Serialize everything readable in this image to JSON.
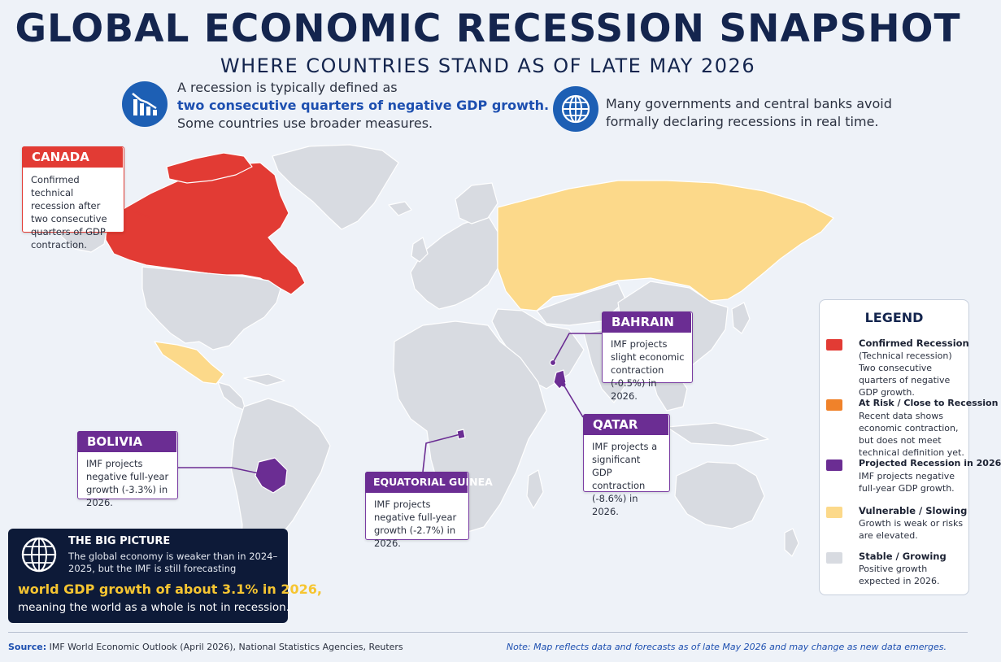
{
  "header": {
    "title": "GLOBAL ECONOMIC RECESSION SNAPSHOT",
    "subtitle": "WHERE COUNTRIES STAND AS OF LATE MAY 2026"
  },
  "info_left": {
    "icon": "declining-chart-icon",
    "line1": "A recession is typically defined as",
    "line2": "two consecutive quarters of negative GDP growth.",
    "line3": "Some countries use broader measures."
  },
  "info_right": {
    "icon": "globe-icon",
    "line1": "Many governments and central banks avoid",
    "line2": "formally declaring recessions in real time."
  },
  "colors": {
    "confirmed": "#e23b34",
    "at_risk": "#f0822a",
    "projected": "#6b2d93",
    "vulnerable": "#fcd98a",
    "stable": "#d8dbe1",
    "ocean": "#eef2f8"
  },
  "countries": [
    {
      "name": "CANADA",
      "status": "confirmed",
      "note": "Confirmed technical recession after two consecutive quarters of GDP contraction."
    },
    {
      "name": "BOLIVIA",
      "status": "projected",
      "note": "IMF projects negative full-year growth (-3.3%) in 2026."
    },
    {
      "name": "EQUATORIAL GUINEA",
      "status": "projected",
      "note": "IMF projects negative full-year growth (-2.7%) in 2026."
    },
    {
      "name": "BAHRAIN",
      "status": "projected",
      "note": "IMF projects slight economic contraction (-0.5%) in 2026."
    },
    {
      "name": "QATAR",
      "status": "projected",
      "note": "IMF projects a significant GDP contraction (-8.6%) in 2026."
    }
  ],
  "legend": {
    "title": "LEGEND",
    "items": [
      {
        "label": "Confirmed Recession",
        "desc": "(Technical recession) Two consecutive quarters of negative GDP growth."
      },
      {
        "label": "At Risk / Close to Recession",
        "desc": "Recent data shows economic contraction, but does not meet technical definition yet."
      },
      {
        "label": "Projected Recession in 2026",
        "desc": "IMF projects negative full-year GDP growth."
      },
      {
        "label": "Vulnerable / Slowing",
        "desc": "Growth is weak or risks are elevated."
      },
      {
        "label": "Stable / Growing",
        "desc": "Positive growth expected in 2026."
      }
    ]
  },
  "big_picture": {
    "title": "THE BIG PICTURE",
    "text": "The global economy is weaker than in 2024–2025, but the IMF is still forecasting",
    "highlight": "world GDP growth of about 3.1% in 2026,",
    "end": "meaning the world as a whole is not in recession."
  },
  "footer": {
    "source_label": "Source:",
    "source_text": "IMF World Economic Outlook (April 2026), National Statistics Agencies, Reuters",
    "note": "Note: Map reflects data and forecasts as of late May 2026 and may change as new data emerges."
  }
}
